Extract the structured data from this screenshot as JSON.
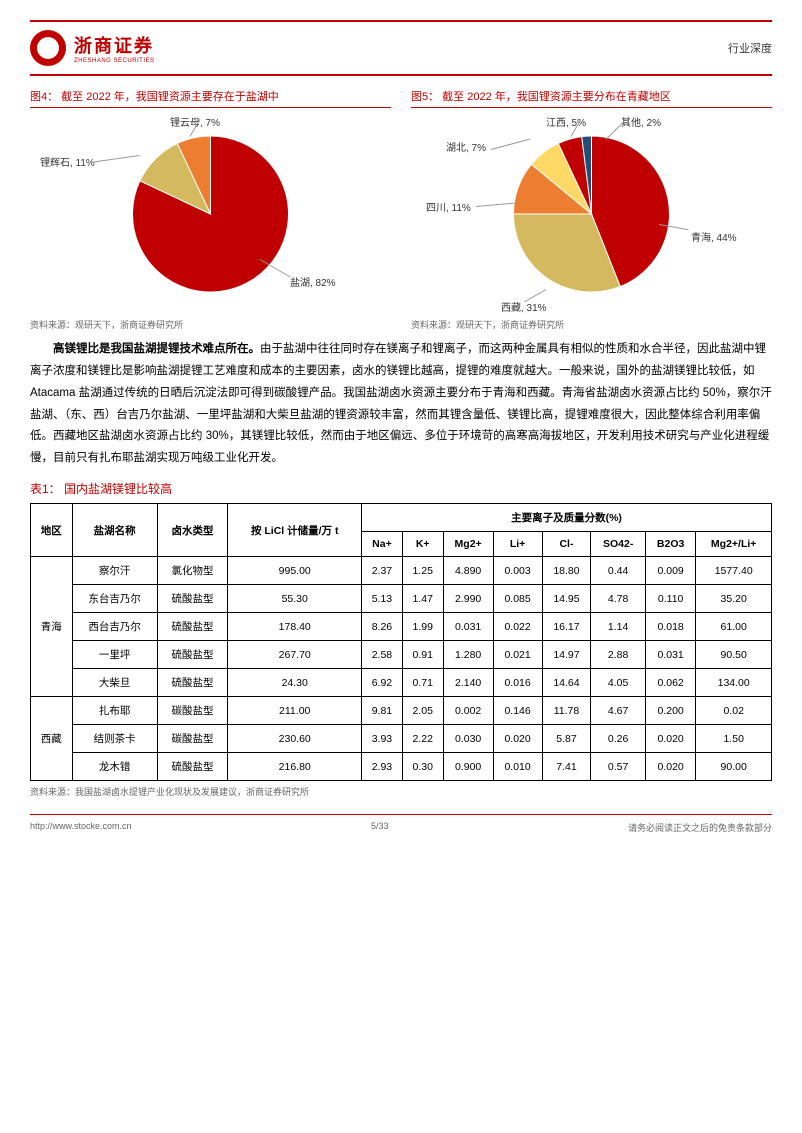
{
  "header": {
    "brand_cn": "浙商证券",
    "brand_en": "ZHESHANG SECURITIES",
    "doc_type": "行业深度"
  },
  "chart4": {
    "title": "图4：  截至 2022 年，我国锂资源主要存在于盐湖中",
    "source": "资料来源：观研天下，浙商证券研究所",
    "type": "pie",
    "slices": [
      {
        "label": "盐湖, 82%",
        "value": 82,
        "color": "#c00000"
      },
      {
        "label": "锂辉石, 11%",
        "value": 11,
        "color": "#d4b95e"
      },
      {
        "label": "锂云母, 7%",
        "value": 7,
        "color": "#ed7d31"
      }
    ],
    "background": "#ffffff"
  },
  "chart5": {
    "title": "图5：  截至 2022 年，我国锂资源主要分布在青藏地区",
    "source": "资料来源：观研天下，浙商证券研究所",
    "type": "pie",
    "slices": [
      {
        "label": "青海, 44%",
        "value": 44,
        "color": "#c00000"
      },
      {
        "label": "西藏, 31%",
        "value": 31,
        "color": "#d4b95e"
      },
      {
        "label": "四川, 11%",
        "value": 11,
        "color": "#ed7d31"
      },
      {
        "label": "湖北, 7%",
        "value": 7,
        "color": "#ffd966"
      },
      {
        "label": "江西, 5%",
        "value": 5,
        "color": "#c00000"
      },
      {
        "label": "其他, 2%",
        "value": 2,
        "color": "#1f4e79"
      }
    ],
    "background": "#ffffff"
  },
  "paragraph": {
    "bold_lead": "高镁锂比是我国盐湖提锂技术难点所在。",
    "text": "由于盐湖中往往同时存在镁离子和锂离子，而这两种金属具有相似的性质和水合半径，因此盐湖中锂离子浓度和镁锂比是影响盐湖提锂工艺难度和成本的主要因素，卤水的镁锂比越高，提锂的难度就越大。一般来说，国外的盐湖镁锂比较低，如 Atacama 盐湖通过传统的日晒后沉淀法即可得到碳酸锂产品。我国盐湖卤水资源主要分布于青海和西藏。青海省盐湖卤水资源占比约 50%，察尔汗盐湖、（东、西）台吉乃尔盐湖、一里坪盐湖和大柴旦盐湖的锂资源较丰富，然而其锂含量低、镁锂比高，提锂难度很大，因此整体综合利用率偏低。西藏地区盐湖卤水资源占比约 30%，其镁锂比较低，然而由于地区偏远、多位于环境苛的高寒高海拔地区，开发利用技术研究与产业化进程缓慢，目前只有扎布耶盐湖实现万吨级工业化开发。"
  },
  "table": {
    "title": "表1：  国内盐湖镁锂比较高",
    "source": "资料来源：我国盐湖卤水提锂产业化现状及发展建议，浙商证券研究所",
    "header_region": "地区",
    "header_lake": "盐湖名称",
    "header_brine": "卤水类型",
    "header_reserve": "按 LiCl 计储量/万 t",
    "header_ions": "主要离子及质量分数(%)",
    "ion_cols": [
      "Na+",
      "K+",
      "Mg2+",
      "Li+",
      "Cl-",
      "SO42-",
      "B2O3",
      "Mg2+/Li+"
    ],
    "groups": [
      {
        "region": "青海",
        "rows": [
          {
            "lake": "察尔汗",
            "brine": "氯化物型",
            "reserve": "995.00",
            "vals": [
              "2.37",
              "1.25",
              "4.890",
              "0.003",
              "18.80",
              "0.44",
              "0.009",
              "1577.40"
            ]
          },
          {
            "lake": "东台吉乃尔",
            "brine": "硫酸盐型",
            "reserve": "55.30",
            "vals": [
              "5.13",
              "1.47",
              "2.990",
              "0.085",
              "14.95",
              "4.78",
              "0.110",
              "35.20"
            ]
          },
          {
            "lake": "西台吉乃尔",
            "brine": "硫酸盐型",
            "reserve": "178.40",
            "vals": [
              "8.26",
              "1.99",
              "0.031",
              "0.022",
              "16.17",
              "1.14",
              "0.018",
              "61.00"
            ]
          },
          {
            "lake": "一里坪",
            "brine": "硫酸盐型",
            "reserve": "267.70",
            "vals": [
              "2.58",
              "0.91",
              "1.280",
              "0.021",
              "14.97",
              "2.88",
              "0.031",
              "90.50"
            ]
          },
          {
            "lake": "大柴旦",
            "brine": "硫酸盐型",
            "reserve": "24.30",
            "vals": [
              "6.92",
              "0.71",
              "2.140",
              "0.016",
              "14.64",
              "4.05",
              "0.062",
              "134.00"
            ]
          }
        ]
      },
      {
        "region": "西藏",
        "rows": [
          {
            "lake": "扎布耶",
            "brine": "碳酸盐型",
            "reserve": "211.00",
            "vals": [
              "9.81",
              "2.05",
              "0.002",
              "0.146",
              "11.78",
              "4.67",
              "0.200",
              "0.02"
            ]
          },
          {
            "lake": "结则茶卡",
            "brine": "碳酸盐型",
            "reserve": "230.60",
            "vals": [
              "3.93",
              "2.22",
              "0.030",
              "0.020",
              "5.87",
              "0.26",
              "0.020",
              "1.50"
            ]
          },
          {
            "lake": "龙木错",
            "brine": "硫酸盐型",
            "reserve": "216.80",
            "vals": [
              "2.93",
              "0.30",
              "0.900",
              "0.010",
              "7.41",
              "0.57",
              "0.020",
              "90.00"
            ]
          }
        ]
      }
    ]
  },
  "footer": {
    "url": "http://www.stocke.com.cn",
    "page": "5/33",
    "disclaimer": "请务必阅读正文之后的免责条款部分"
  }
}
